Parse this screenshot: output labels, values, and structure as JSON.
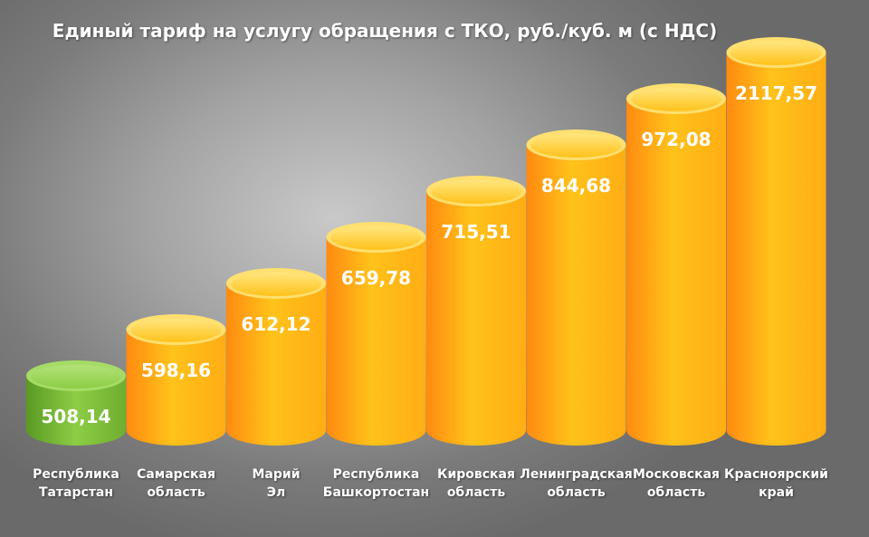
{
  "title": "Единый тариф на услугу обращения с ТКО, руб./куб. м (с НДС)",
  "colors": {
    "highlight_top": "#9ad45a",
    "highlight_body": "#6fae2f",
    "bar_top": "#ffd23a",
    "bar_body_light": "#ffc21a",
    "bar_body_dark": "#ff8a10"
  },
  "chart_data": {
    "type": "bar",
    "title": "Единый тариф на услугу обращения с ТКО, руб./куб. м (с НДС)",
    "categories": [
      [
        "Республика",
        "Татарстан"
      ],
      [
        "Самарская",
        "область"
      ],
      [
        "Марий",
        "Эл"
      ],
      [
        "Республика",
        "Башкортостан"
      ],
      [
        "Кировская",
        "область"
      ],
      [
        "Ленинградская",
        "область"
      ],
      [
        "Московская",
        "область"
      ],
      [
        "Красноярский",
        "край"
      ]
    ],
    "values": [
      508.14,
      598.16,
      612.12,
      659.78,
      715.51,
      844.68,
      972.08,
      2117.57
    ],
    "value_labels": [
      "508,14",
      "598,16",
      "612,12",
      "659,78",
      "715,51",
      "844,68",
      "972,08",
      "2117,57"
    ],
    "highlighted_index": 0,
    "xlabel": "",
    "ylabel": "",
    "grid": false,
    "legend": "none"
  }
}
